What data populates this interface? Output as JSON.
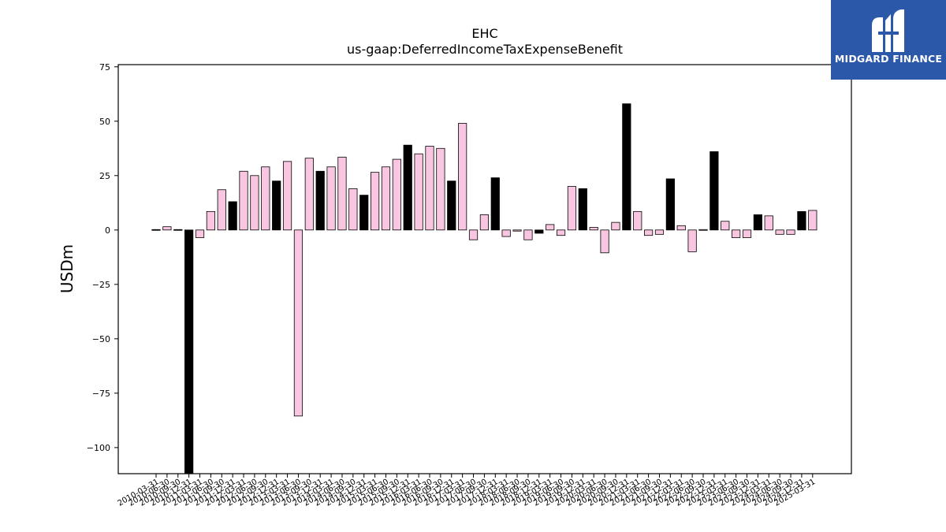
{
  "chart_data": {
    "type": "bar",
    "title": "EHC",
    "subtitle": "us-gaap:DeferredIncomeTaxExpenseBenefit",
    "xlabel": "",
    "ylabel": "USDm",
    "ylim": [
      -112,
      76
    ],
    "yticks": [
      75,
      50,
      25,
      0,
      -25,
      -50,
      -75,
      -100
    ],
    "ytick_labels": [
      "75",
      "50",
      "25",
      "0",
      "−25",
      "−50",
      "−75",
      "−100"
    ],
    "grid": false,
    "legend": "none",
    "colors": {
      "annual": "#000000",
      "quarterly": "#f9c6e1",
      "edge": "#000000"
    },
    "categories": [
      "2010-03-31",
      "2010-06-30",
      "2010-09-30",
      "2010-12-31",
      "2011-03-31",
      "2011-06-30",
      "2011-09-30",
      "2011-12-31",
      "2012-03-31",
      "2012-06-30",
      "2012-09-30",
      "2012-12-31",
      "2013-03-31",
      "2013-06-30",
      "2013-09-30",
      "2013-12-31",
      "2014-03-31",
      "2014-06-30",
      "2014-09-30",
      "2014-12-31",
      "2015-03-31",
      "2015-06-30",
      "2015-09-30",
      "2015-12-31",
      "2016-03-31",
      "2016-06-30",
      "2016-09-30",
      "2016-12-31",
      "2017-03-31",
      "2017-06-30",
      "2017-09-30",
      "2017-12-31",
      "2018-03-31",
      "2018-06-30",
      "2018-09-30",
      "2018-12-31",
      "2019-03-31",
      "2019-06-30",
      "2019-09-30",
      "2019-12-31",
      "2020-03-31",
      "2020-06-30",
      "2020-09-30",
      "2020-12-31",
      "2021-03-31",
      "2021-06-30",
      "2021-09-30",
      "2021-12-31",
      "2022-03-31",
      "2022-06-30",
      "2022-09-30",
      "2022-12-31",
      "2023-03-31",
      "2023-06-30",
      "2023-09-30",
      "2023-12-31",
      "2024-03-31",
      "2024-06-30",
      "2024-09-30",
      "2024-12-31",
      "2025-03-31"
    ],
    "values": [
      0.2,
      1.5,
      0.2,
      -112,
      -3.5,
      8.5,
      18.5,
      13,
      27,
      25,
      29,
      22.5,
      31.5,
      -85.5,
      33,
      27,
      29,
      33.5,
      19,
      16,
      26.5,
      29,
      32.5,
      39,
      35,
      38.5,
      37.5,
      22.5,
      49,
      -4.5,
      7,
      24,
      -3,
      -0.5,
      -4.5,
      -1.5,
      2.5,
      -2.5,
      20,
      19,
      1.2,
      -10.5,
      3.5,
      58,
      8.5,
      -2.5,
      -2,
      23.5,
      2,
      -10,
      0.2,
      36,
      4,
      -3.5,
      -3.5,
      7,
      6.5,
      -2,
      -2,
      8.5,
      9
    ],
    "annual_flags": [
      1,
      0,
      1,
      1,
      0,
      0,
      0,
      1,
      0,
      0,
      0,
      1,
      0,
      0,
      0,
      1,
      0,
      0,
      0,
      1,
      0,
      0,
      0,
      1,
      0,
      0,
      0,
      1,
      0,
      0,
      0,
      1,
      0,
      0,
      0,
      1,
      0,
      0,
      0,
      1,
      0,
      0,
      0,
      1,
      0,
      0,
      0,
      1,
      0,
      0,
      0,
      1,
      0,
      0,
      0,
      1,
      0,
      0,
      0,
      1,
      0
    ]
  },
  "logo": {
    "text": "MIDGARD FINANCE"
  }
}
